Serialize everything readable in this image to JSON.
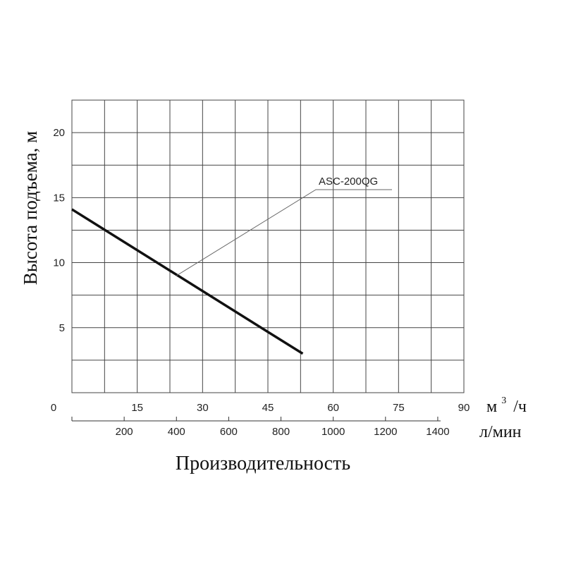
{
  "chart_data": {
    "type": "line",
    "title": "",
    "ylabel": "Высота подъема, м",
    "xlabel": "Производительность",
    "ylim": [
      0,
      22.5
    ],
    "xlim": [
      0,
      90
    ],
    "y_ticks": [
      5,
      10,
      15,
      20
    ],
    "x_ticks_m3h": [
      0,
      15,
      30,
      45,
      60,
      75,
      90
    ],
    "x_unit_m3h": "м³/ч",
    "x_unit_m3h_base": "м",
    "x_unit_m3h_sup": "3",
    "x_unit_m3h_rest": "/ч",
    "x_ticks_lmin": [
      200,
      400,
      600,
      800,
      1000,
      1200,
      1400
    ],
    "x_unit_lmin": "л/мин",
    "grid": true,
    "series": [
      {
        "name": "ASC-200QG",
        "x": [
          0,
          53
        ],
        "y": [
          14.1,
          3
        ]
      }
    ],
    "annotation": {
      "label": "ASC-200QG",
      "points_to": [
        24,
        9
      ]
    },
    "colors": {
      "series": "#111111",
      "grid": "#444444",
      "leader": "#666666"
    }
  }
}
